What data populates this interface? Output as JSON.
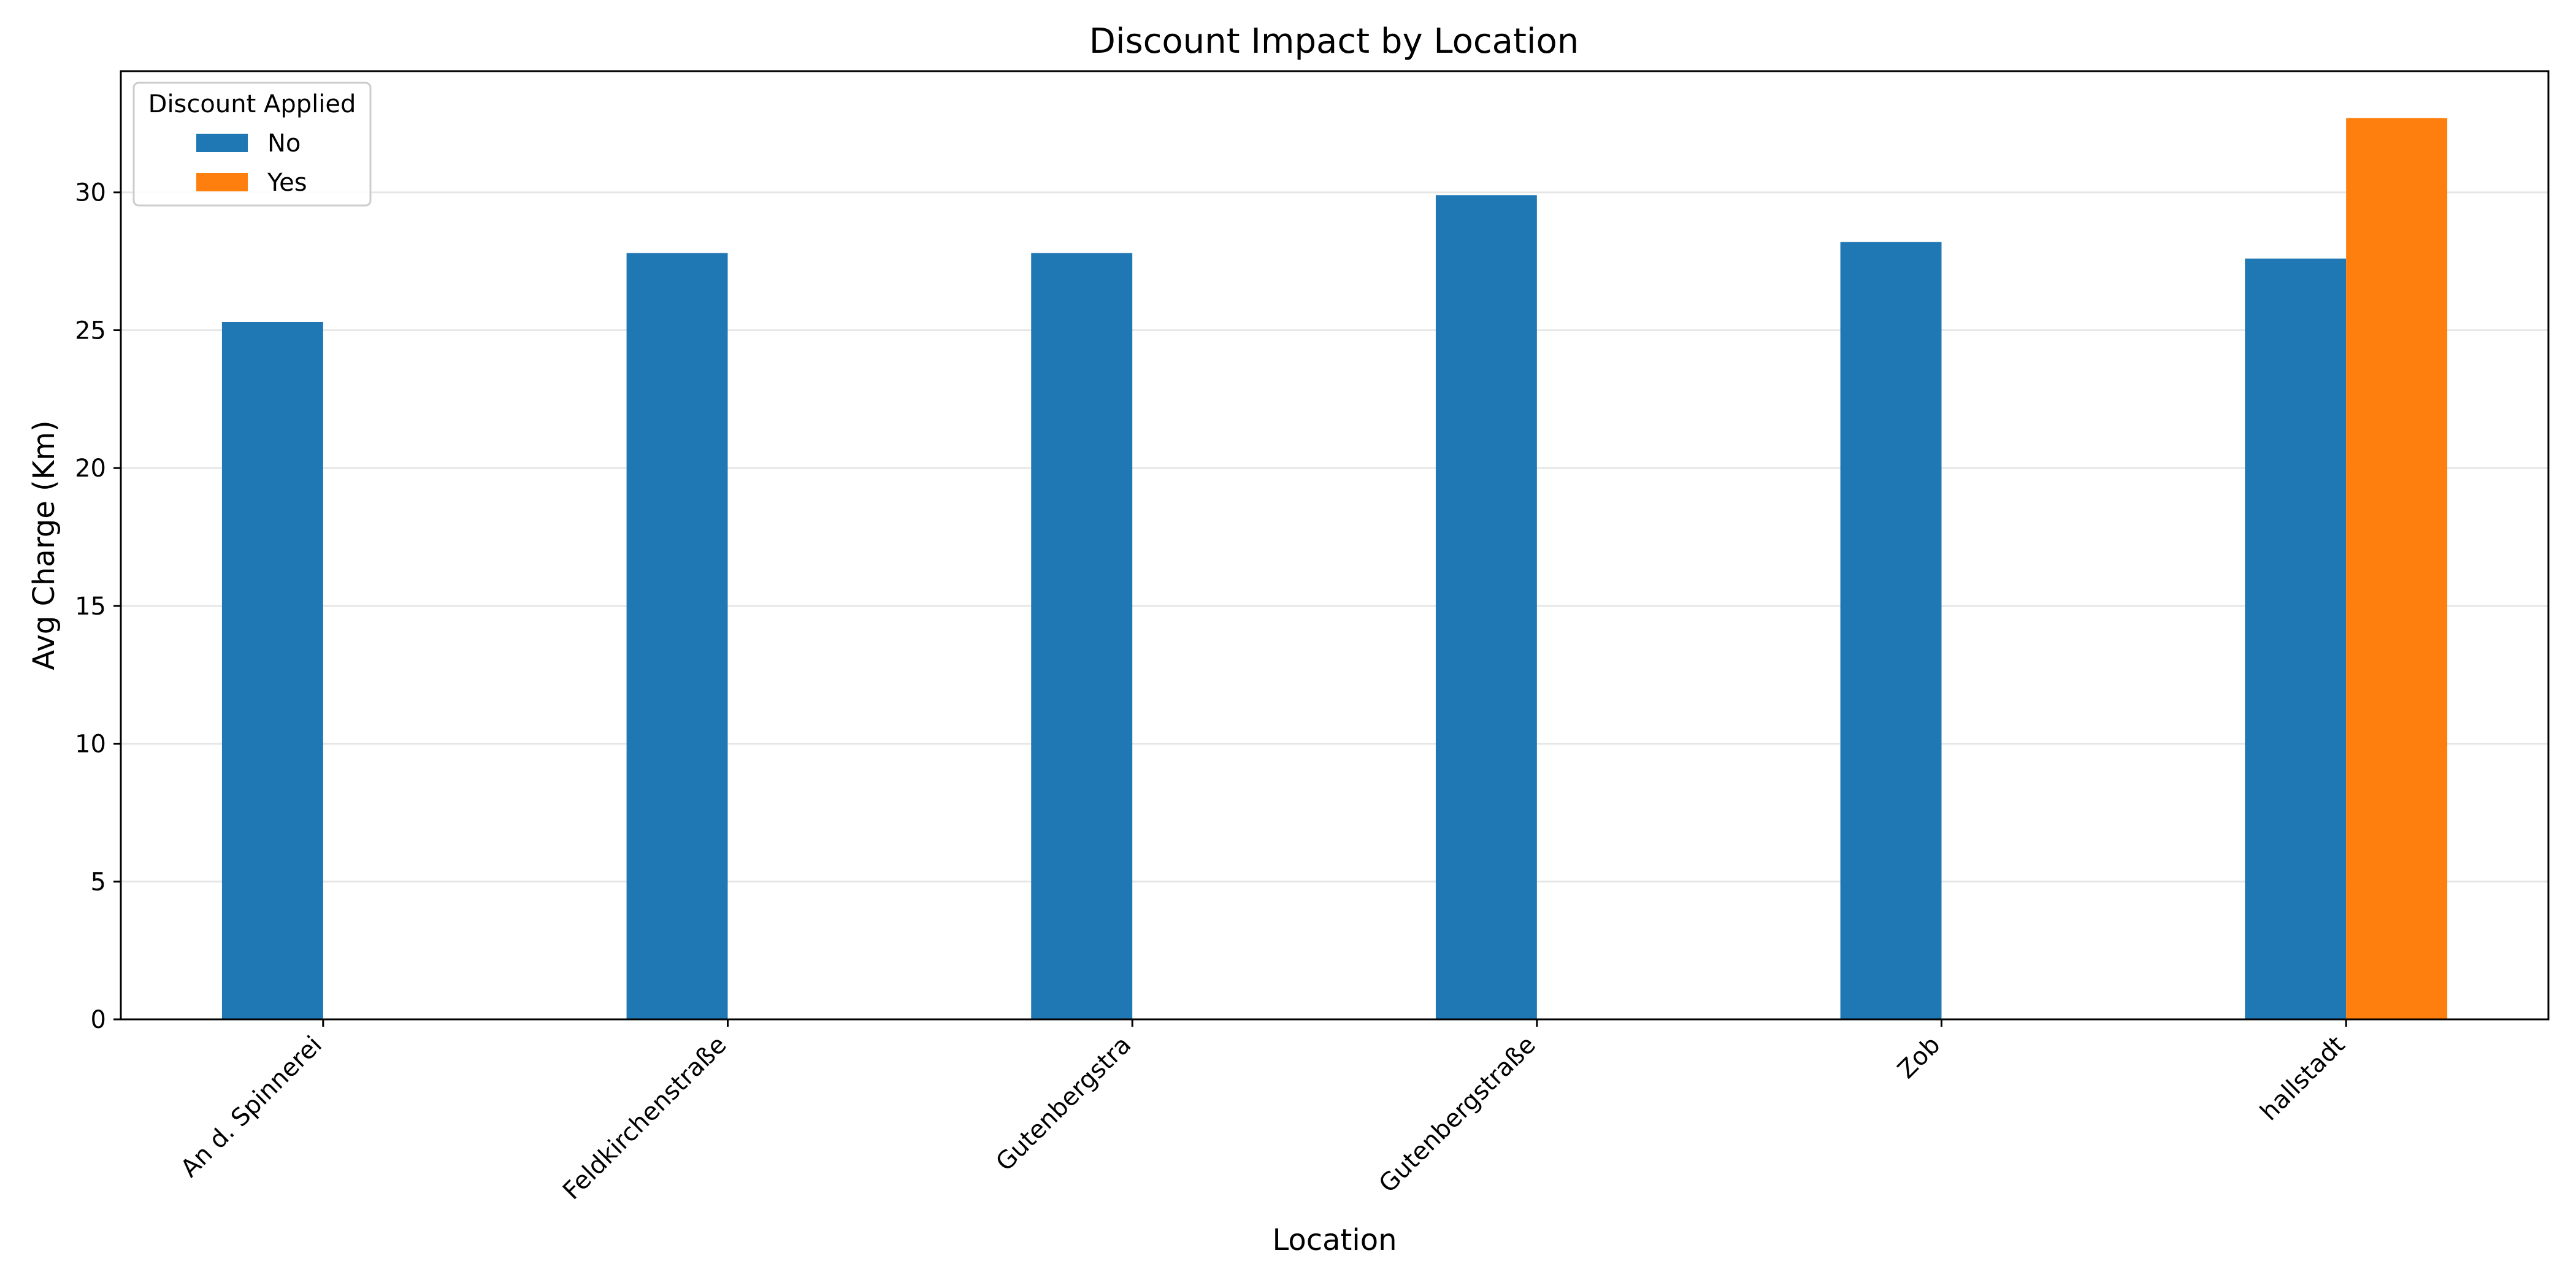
{
  "chart_data": {
    "type": "bar",
    "title": "Discount Impact by Location",
    "xlabel": "Location",
    "ylabel": "Avg Charge (Km)",
    "categories": [
      "An d. Spinnerei",
      "Feldkirchenstraße",
      "Gutenbergstra",
      "Gutenbergstraße",
      "Zob",
      "hallstadt"
    ],
    "series": [
      {
        "name": "No",
        "color": "#1f77b4",
        "values": [
          25.3,
          27.8,
          27.8,
          29.9,
          28.2,
          27.6
        ]
      },
      {
        "name": "Yes",
        "color": "#ff7f0e",
        "values": [
          null,
          null,
          null,
          null,
          null,
          32.7
        ]
      }
    ],
    "ylim": [
      0,
      34.4
    ],
    "yticks": [
      0,
      5,
      10,
      15,
      20,
      25,
      30
    ],
    "grid": "y",
    "legend": {
      "title": "Discount Applied",
      "placement": "top-left"
    }
  }
}
